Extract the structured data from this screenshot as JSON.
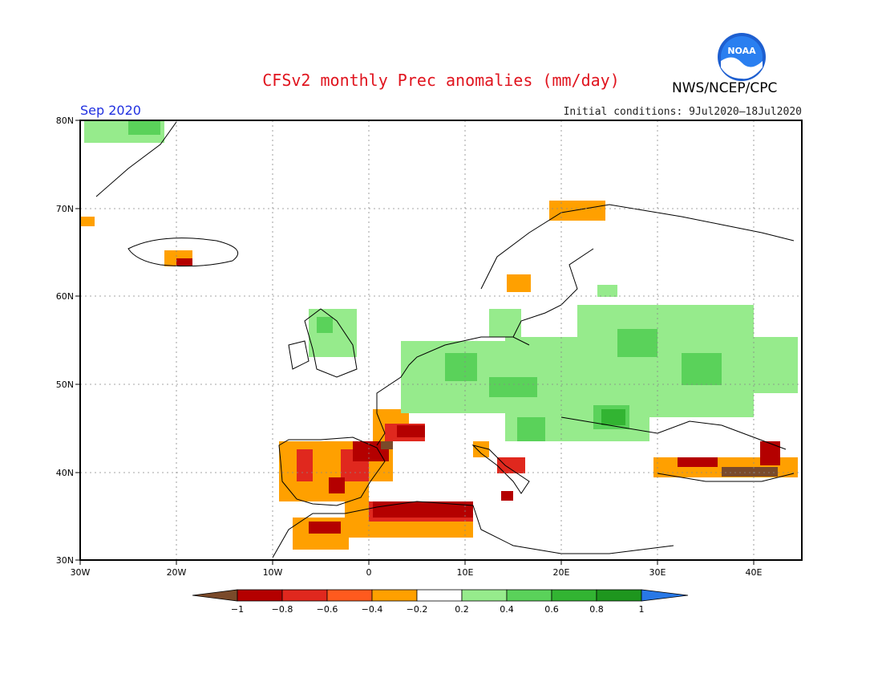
{
  "title": "CFSv2 monthly Prec anomalies (mm/day)",
  "agency": "NWS/NCEP/CPC",
  "logo_text": "NOAA",
  "period": "Sep 2020",
  "initial_conditions": "Initial conditions: 9Jul2020–18Jul2020",
  "axes": {
    "lat_ticks": [
      "80N",
      "70N",
      "60N",
      "50N",
      "40N",
      "30N"
    ],
    "lon_ticks": [
      "30W",
      "20W",
      "10W",
      "0",
      "10E",
      "20E",
      "30E",
      "40E"
    ]
  },
  "legend": {
    "labels": [
      "−1",
      "−0.8",
      "−0.6",
      "−0.4",
      "−0.2",
      "0.2",
      "0.4",
      "0.6",
      "0.8",
      "1"
    ],
    "colors": [
      "#7a4a2a",
      "#b40000",
      "#e0281e",
      "#ff5a1e",
      "#ffa000",
      "#ffffff",
      "#96eb8c",
      "#5ad25a",
      "#32b432",
      "#1e961e",
      "#2878e6"
    ]
  },
  "colors": {
    "title": "#e0141e",
    "period": "#2030e0",
    "dry_strong": "#b40000",
    "dry_mid": "#e0281e",
    "dry_light": "#ffa000",
    "wet_light": "#96eb8c",
    "wet_mid": "#5ad25a",
    "wet_strong": "#32b432"
  }
}
